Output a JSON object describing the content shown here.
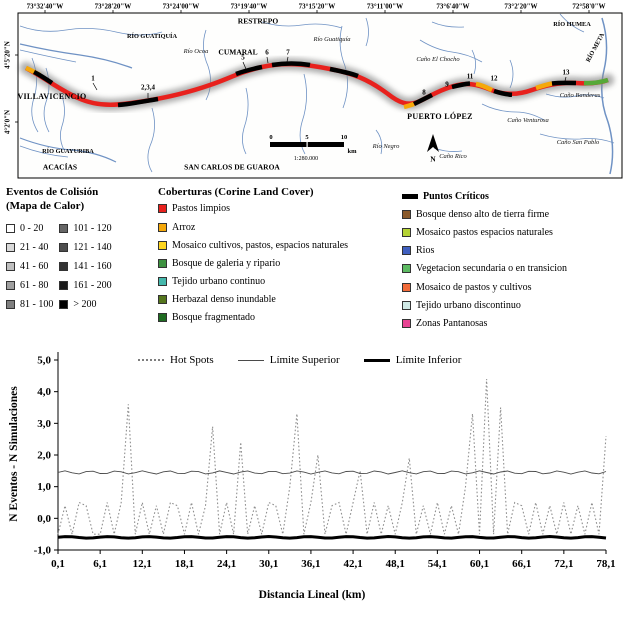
{
  "map": {
    "top_coordinates": [
      "73°32'40\"W",
      "73°28'20\"W",
      "73°24'00\"W",
      "73°19'40\"W",
      "73°15'20\"W",
      "73°11'00\"W",
      "73°6'40\"W",
      "73°2'20\"W",
      "72°58'0\"W"
    ],
    "left_coordinates": [
      "4°5'20\"N",
      "4°2'0\"N"
    ],
    "places": {
      "restrepo": "RESTREPO",
      "villavicencio": "VILLAVICENCIO",
      "cumaral": "CUMARAL",
      "puerto_lopez": "PUERTO LÓPEZ",
      "acacias": "ACACÍAS",
      "san_carlos": "SAN CARLOS DE GUAROA",
      "rio_guatiquia_upper": "RÍO GUATIQUÍA",
      "rio_guatiquia": "Río Guatiquía",
      "rio_ocoa": "Río Ocoa",
      "rio_guayuriba": "RÍO GUAYURIBA",
      "rio_humea": "RÍO HUMEA",
      "rio_meta": "RÍO META",
      "cano_el_chocho": "Caño El Chocho",
      "cano_banderas": "Caño Banderas",
      "cano_venturosa": "Caño Venturosa",
      "cano_san_pablo": "Caño San Pablo",
      "cano_rico": "Caño Rico",
      "rio_negro": "Río Negro"
    },
    "route_markers": [
      "1",
      "2,3,4",
      "5",
      "6",
      "7",
      "8",
      "9",
      "11",
      "12",
      "13"
    ],
    "scale": {
      "ticks": [
        "0",
        "5",
        "10"
      ],
      "unit": "km",
      "ratio": "1:280.000",
      "north": "N"
    }
  },
  "heat_legend": {
    "title_line1": "Eventos de Colisión",
    "title_line2": "(Mapa de Calor)",
    "items": [
      {
        "label": "0 - 20",
        "color": "#ffffff"
      },
      {
        "label": "21 - 40",
        "color": "#d9d9d9"
      },
      {
        "label": "41 - 60",
        "color": "#bfbfbf"
      },
      {
        "label": "61 - 80",
        "color": "#9f9f9f"
      },
      {
        "label": "81 - 100",
        "color": "#7f7f7f"
      },
      {
        "label": "101 - 120",
        "color": "#666666"
      },
      {
        "label": "121 - 140",
        "color": "#4d4d4d"
      },
      {
        "label": "141 - 160",
        "color": "#333333"
      },
      {
        "label": "161 - 200",
        "color": "#1a1a1a"
      },
      {
        "label": "> 200",
        "color": "#000000"
      }
    ]
  },
  "cover_legend": {
    "title": "Coberturas (Corine Land Cover)",
    "items": [
      {
        "label": "Pastos limpios",
        "color": "#e8211d"
      },
      {
        "label": "Arroz",
        "color": "#f5a80a"
      },
      {
        "label": "Mosaico cultivos, pastos, espacios naturales",
        "color": "#ffd61f"
      },
      {
        "label": "Bosque de galeria y ripario",
        "color": "#3d9140"
      },
      {
        "label": "Tejido urbano continuo",
        "color": "#45b8ac"
      },
      {
        "label": "Herbazal denso inundable",
        "color": "#55761d"
      },
      {
        "label": "Bosque fragmentado",
        "color": "#1f6b21"
      }
    ]
  },
  "extra_legend": {
    "items": [
      {
        "label": "Puntos Críticos",
        "color": "#000000"
      },
      {
        "label": "Bosque denso alto de tierra firme",
        "color": "#8a5a2b"
      },
      {
        "label": "Mosaico pastos espacios naturales",
        "color": "#b5d334"
      },
      {
        "label": "Rios",
        "color": "#3f5fbf"
      },
      {
        "label": "Vegetacion secundaria o en transicion",
        "color": "#5dbb63"
      },
      {
        "label": "Mosaico de pastos y cultivos",
        "color": "#f26b3a"
      },
      {
        "label": "Tejido urbano discontinuo",
        "color": "#cfe9e5"
      },
      {
        "label": "Zonas Pantanosas",
        "color": "#e84393"
      }
    ]
  },
  "chart_data": {
    "type": "line",
    "title": "",
    "xlabel": "Distancia Lineal (km)",
    "ylabel": "N Eventos - N Simulaciones",
    "xlim": [
      0.1,
      78.1
    ],
    "ylim": [
      -1.0,
      5.0
    ],
    "grid": false,
    "legend_position": "top-inside",
    "ytick_labels": [
      "-1,0",
      "0,0",
      "1,0",
      "2,0",
      "3,0",
      "4,0",
      "5,0"
    ],
    "xtick_labels": [
      "0,1",
      "6,1",
      "12,1",
      "18,1",
      "24,1",
      "30,1",
      "36,1",
      "42,1",
      "48,1",
      "54,1",
      "60,1",
      "66,1",
      "72,1",
      "78,1"
    ],
    "legend": [
      "Hot Spots",
      "Límite Superior",
      "Límite Inferior"
    ],
    "series": [
      {
        "name": "Hot Spots",
        "style": "dotted",
        "x_start": 0.1,
        "x_step": 1.0,
        "values": [
          -0.5,
          0.4,
          -0.5,
          0.5,
          0.4,
          -0.5,
          -0.5,
          0.5,
          -0.5,
          0.5,
          3.6,
          -0.5,
          0.5,
          -0.5,
          0.4,
          -0.5,
          0.5,
          0.4,
          -0.5,
          0.5,
          -0.5,
          0.4,
          2.9,
          -0.5,
          0.5,
          -0.5,
          2.4,
          -0.5,
          0.4,
          -0.5,
          0.5,
          0.4,
          -0.5,
          1.0,
          3.3,
          -0.5,
          0.5,
          2.0,
          -0.5,
          0.4,
          0.5,
          -0.5,
          0.5,
          1.5,
          -0.5,
          0.5,
          -0.5,
          0.4,
          -0.5,
          0.5,
          1.9,
          -0.5,
          0.4,
          -0.5,
          0.5,
          -0.5,
          0.4,
          -0.5,
          1.0,
          3.3,
          -0.5,
          4.4,
          -0.5,
          3.5,
          -0.5,
          0.5,
          0.4,
          -0.5,
          0.5,
          -0.5,
          0.4,
          -0.5,
          0.5,
          -0.5,
          0.4,
          -0.5,
          0.5,
          -0.5,
          2.6
        ]
      },
      {
        "name": "Límite Superior",
        "style": "thin-solid",
        "value": 1.45
      },
      {
        "name": "Límite Inferior",
        "style": "thick-solid",
        "value": -0.6
      }
    ]
  }
}
